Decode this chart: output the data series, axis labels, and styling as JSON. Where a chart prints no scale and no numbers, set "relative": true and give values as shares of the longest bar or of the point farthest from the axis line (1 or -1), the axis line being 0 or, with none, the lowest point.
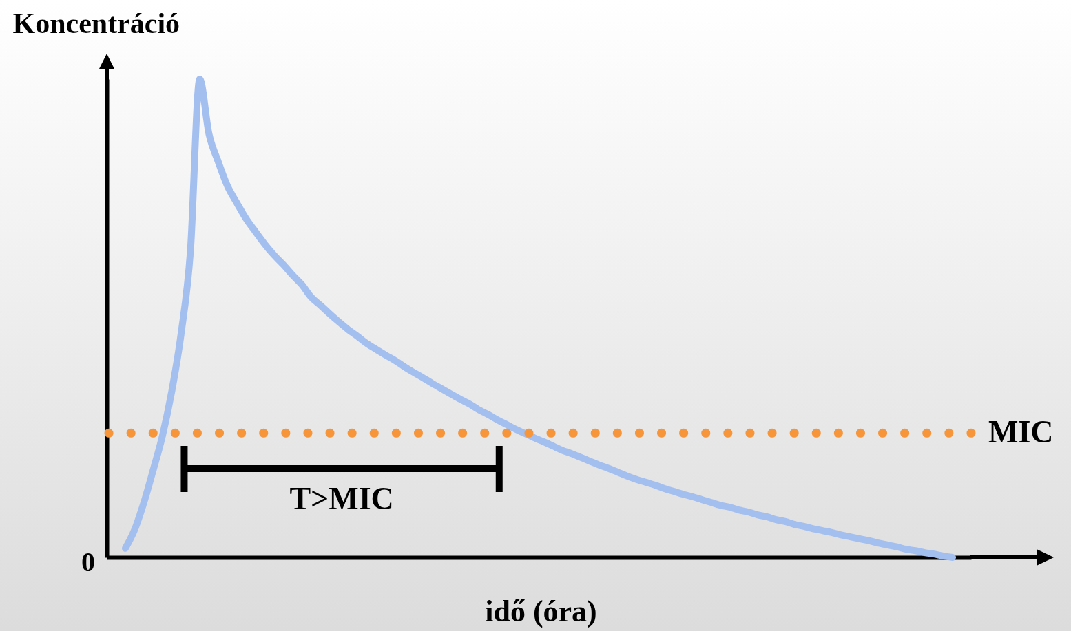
{
  "chart_data": {
    "type": "line",
    "relative": true,
    "xlabel": "idő (óra)",
    "ylabel": "Koncentráció",
    "categories": [
      null,
      null,
      null,
      null,
      null,
      null,
      null,
      null,
      null,
      null,
      null,
      null,
      null,
      null,
      null,
      null,
      null,
      null,
      null,
      null,
      null,
      null,
      null,
      null,
      null,
      null,
      null,
      null,
      null,
      null,
      null,
      null,
      null,
      null,
      null,
      null,
      null,
      null,
      null,
      null,
      null,
      null,
      null,
      null,
      null,
      null,
      null,
      null,
      null,
      null,
      null,
      null,
      null,
      null,
      null,
      null,
      null,
      null,
      null,
      null,
      null,
      null,
      null,
      null,
      null,
      null,
      null,
      null,
      null,
      null,
      null,
      null,
      null,
      null,
      null,
      null,
      null,
      null,
      null,
      null,
      null,
      null,
      null,
      null,
      null,
      null,
      null,
      null,
      null,
      null,
      null,
      null,
      null,
      null
    ],
    "series": [
      {
        "color": "#a3bff0",
        "values": [
          null,
          null,
          0.019,
          0.058,
          0.115,
          0.183,
          0.255,
          0.348,
          0.468,
          0.64,
          1,
          0.885,
          0.827,
          0.776,
          0.741,
          0.708,
          0.681,
          0.655,
          0.632,
          0.612,
          0.59,
          0.57,
          0.544,
          0.527,
          0.509,
          0.492,
          0.476,
          0.462,
          0.447,
          0.435,
          0.423,
          0.412,
          0.399,
          0.387,
          0.376,
          0.364,
          0.353,
          0.342,
          0.331,
          0.321,
          0.309,
          0.299,
          0.288,
          0.278,
          0.268,
          0.259,
          0.25,
          0.242,
          0.233,
          0.224,
          0.217,
          0.209,
          0.201,
          0.193,
          0.186,
          0.178,
          0.17,
          0.163,
          0.157,
          0.151,
          0.144,
          0.138,
          0.132,
          0.127,
          0.121,
          0.115,
          0.109,
          0.105,
          0.099,
          0.095,
          0.089,
          0.085,
          0.079,
          0.075,
          0.069,
          0.065,
          0.06,
          0.056,
          0.052,
          0.047,
          0.043,
          0.039,
          0.035,
          0.03,
          0.026,
          0.022,
          0.017,
          0.014,
          0.01,
          0.007,
          0.003,
          0,
          null,
          null
        ]
      }
    ],
    "ref_lines": [
      {
        "axis": "y",
        "value": 0.26,
        "label": "MIC",
        "color": "#f7953a",
        "line_style": "dotted"
      }
    ],
    "annotations": [
      "0",
      "T>MIC"
    ],
    "grid": false
  }
}
